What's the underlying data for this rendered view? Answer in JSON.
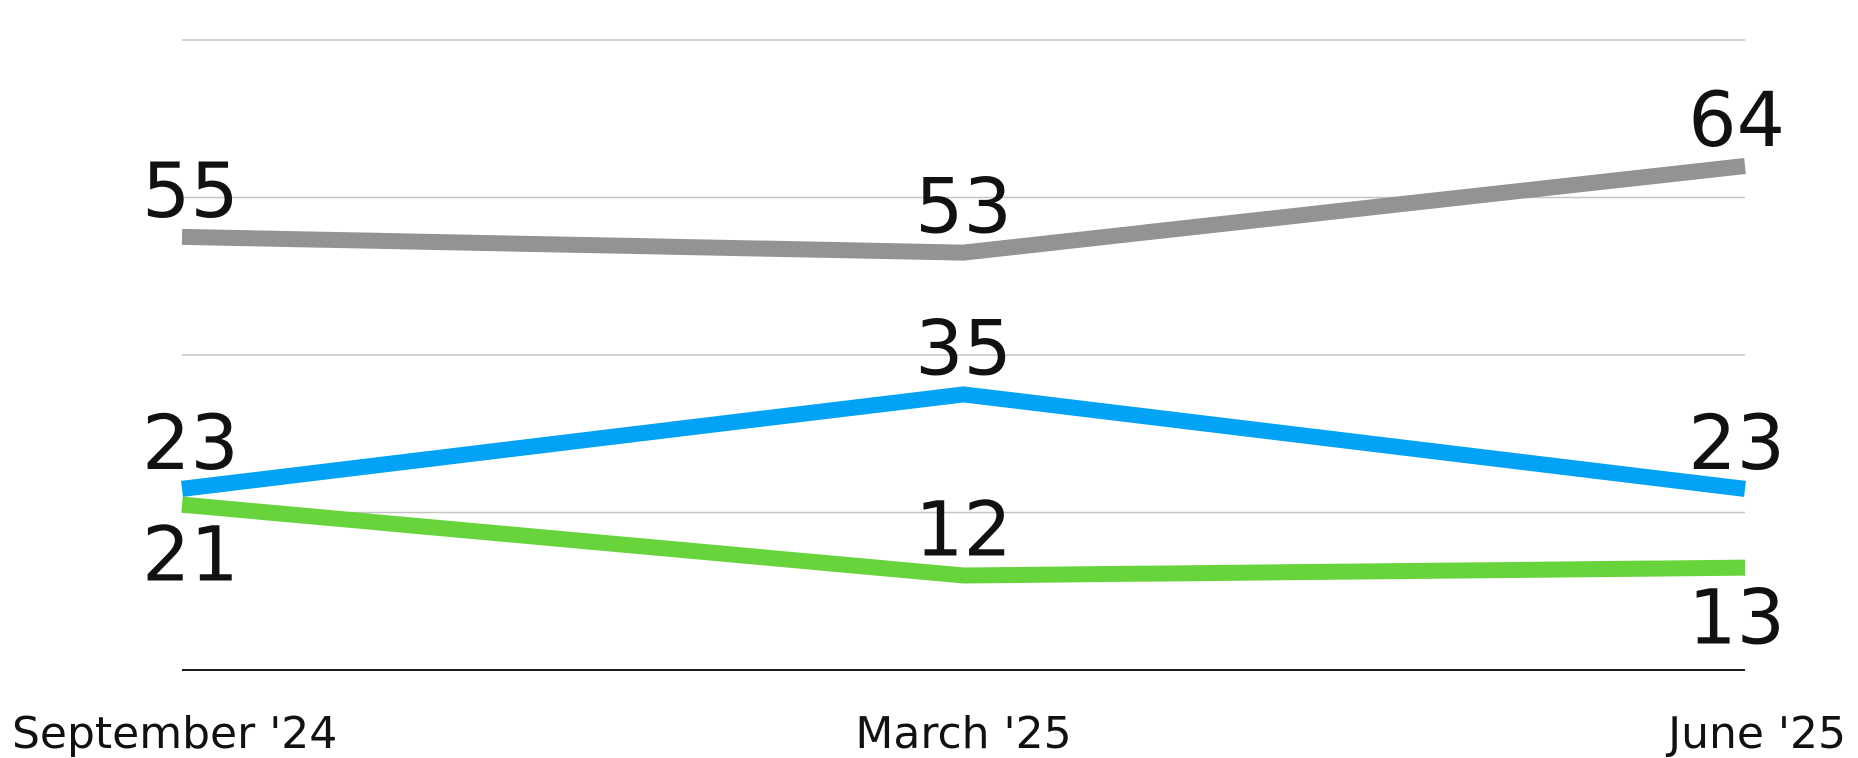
{
  "chart_data": {
    "type": "line",
    "categories": [
      "September '24",
      "March '25",
      "June '25"
    ],
    "series": [
      {
        "values": [
          55,
          53,
          64
        ],
        "color": "#939393"
      },
      {
        "values": [
          21,
          12,
          13
        ],
        "color": "#66d43a"
      },
      {
        "values": [
          23,
          35,
          23
        ],
        "color": "#02a2f6"
      }
    ],
    "ylim": [
      0,
      80
    ],
    "gridlines": [
      0,
      20,
      40,
      60,
      80
    ],
    "grid": true,
    "legend": "none"
  }
}
